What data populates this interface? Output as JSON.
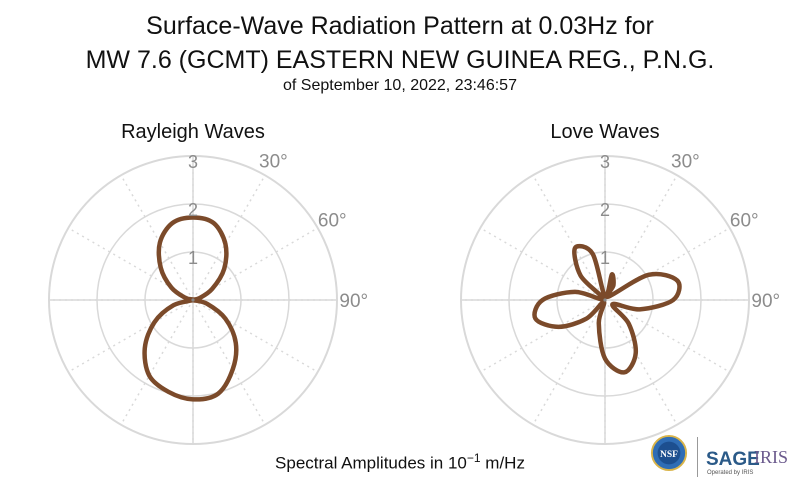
{
  "title": {
    "line1": "Surface-Wave Radiation Pattern at 0.03Hz for",
    "line2": "MW 7.6 (GCMT) EASTERN NEW GUINEA REG., P.N.G.",
    "line3": "of September 10, 2022, 23:46:57"
  },
  "footer": {
    "prefix": "Spectral Amplitudes in ",
    "unit_base": "10",
    "unit_exp": "−1",
    "unit_suffix": " m/Hz"
  },
  "logos": {
    "nsf": "NSF",
    "sage": "SAGE",
    "iris": "IRIS",
    "operated": "Operated by IRIS"
  },
  "colors": {
    "pattern": "#7b4a2a",
    "grid": "#d9d9d9",
    "tick": "#8c8c8c"
  },
  "chart_data": [
    {
      "type": "polar",
      "title": "Rayleigh Waves",
      "r_ticks": [
        "1",
        "2",
        "3"
      ],
      "theta_ticks": [
        "30°",
        "60°",
        "90°"
      ],
      "rlim": [
        0,
        3
      ],
      "theta_zero": "north",
      "theta_direction": "clockwise",
      "series": [
        {
          "theta_deg": [
            0,
            15,
            30,
            45,
            60,
            75,
            90,
            105,
            120,
            135,
            150,
            165,
            180,
            195,
            210,
            225,
            240,
            255,
            270,
            285,
            300,
            315,
            330,
            345
          ],
          "r": [
            1.72,
            1.66,
            1.35,
            0.92,
            0.46,
            0.13,
            0.0,
            0.3,
            0.78,
            1.26,
            1.66,
            2.02,
            2.07,
            1.98,
            1.82,
            1.42,
            0.93,
            0.42,
            0.0,
            0.16,
            0.52,
            0.95,
            1.38,
            1.66
          ]
        }
      ]
    },
    {
      "type": "polar",
      "title": "Love Waves",
      "r_ticks": [
        "1",
        "2",
        "3"
      ],
      "theta_ticks": [
        "30°",
        "60°",
        "90°"
      ],
      "rlim": [
        0,
        3
      ],
      "theta_zero": "north",
      "theta_direction": "clockwise",
      "series": [
        {
          "theta_deg": [
            0,
            15,
            30,
            45,
            60,
            75,
            90,
            105,
            120,
            135,
            150,
            165,
            180,
            195,
            210,
            225,
            240,
            255,
            270,
            285,
            300,
            315,
            330,
            345
          ],
          "r": [
            0.08,
            0.55,
            0.35,
            0.1,
            1.05,
            1.56,
            1.42,
            0.75,
            0.18,
            0.7,
            1.28,
            1.56,
            1.22,
            0.5,
            0.05,
            0.55,
            1.12,
            1.5,
            1.3,
            0.65,
            0.05,
            0.72,
            1.25,
            1.0
          ]
        }
      ]
    }
  ]
}
